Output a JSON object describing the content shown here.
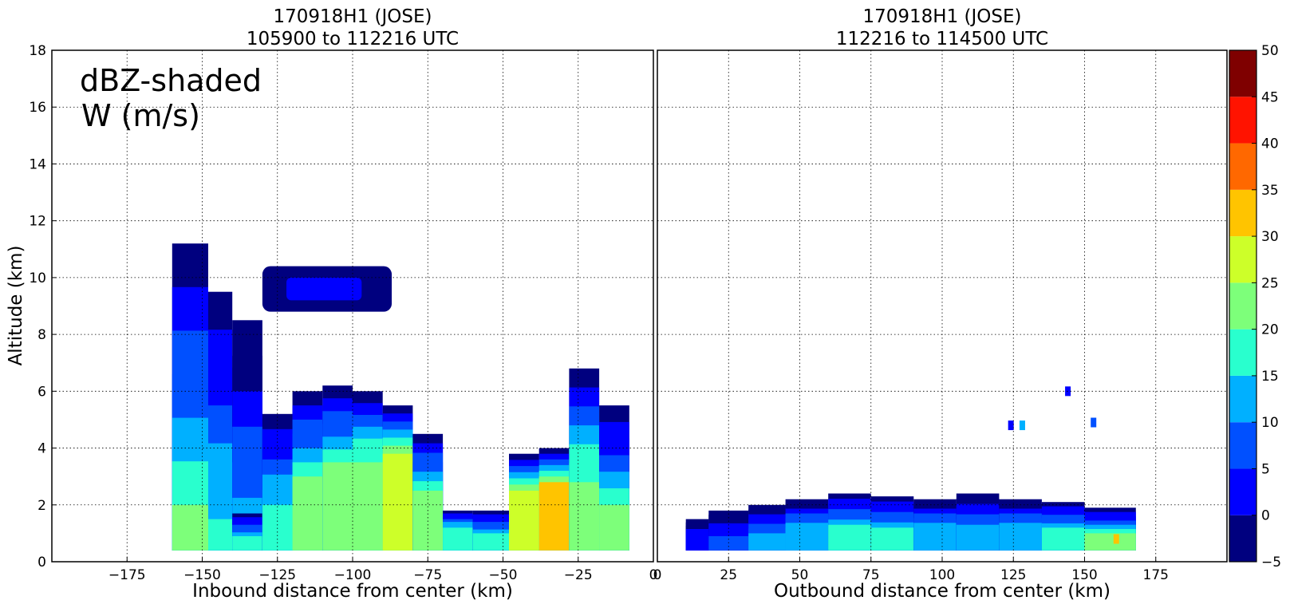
{
  "chart_data": [
    {
      "type": "heatmap",
      "title": "170918H1 (JOSE)",
      "subtitle": "105900 to 112216 UTC",
      "xlabel": "Inbound distance from center (km)",
      "ylabel": "Altitude (km)",
      "xlim": [
        -200,
        0
      ],
      "ylim": [
        0,
        18
      ],
      "xticks": [
        "−175",
        "−150",
        "−125",
        "−100",
        "−75",
        "−50",
        "−25",
        "0"
      ],
      "xtick_values": [
        -175,
        -150,
        -125,
        -100,
        -75,
        -50,
        -25,
        0
      ],
      "yticks": [
        "0",
        "2",
        "4",
        "6",
        "8",
        "10",
        "12",
        "14",
        "16",
        "18"
      ],
      "ytick_values": [
        0,
        2,
        4,
        6,
        8,
        10,
        12,
        14,
        16,
        18
      ],
      "grid": true,
      "annotation": [
        "dBZ-shaded",
        "W (m/s)"
      ],
      "columns": [
        {
          "x0": -160,
          "x1": -148,
          "top": 11.2,
          "core": 2.0,
          "peak": 22
        },
        {
          "x0": -148,
          "x1": -140,
          "top": 9.5,
          "core": 1.5,
          "peak": 18
        },
        {
          "x0": -140,
          "x1": -130,
          "top": 8.5,
          "core": 1.0,
          "peak": 14
        },
        {
          "x0": -140,
          "x1": -130,
          "top": 1.7,
          "core": 0.9,
          "peak": 16
        },
        {
          "x0": -130,
          "x1": -120,
          "top": 5.2,
          "core": 2.0,
          "peak": 18
        },
        {
          "x0": -120,
          "x1": -110,
          "top": 6.0,
          "core": 3.0,
          "peak": 22
        },
        {
          "x0": -110,
          "x1": -100,
          "top": 6.2,
          "core": 3.5,
          "peak": 22
        },
        {
          "x0": -100,
          "x1": -90,
          "top": 6.0,
          "core": 3.5,
          "peak": 24
        },
        {
          "x0": -90,
          "x1": -80,
          "top": 5.5,
          "core": 3.8,
          "peak": 28
        },
        {
          "x0": -80,
          "x1": -70,
          "top": 4.5,
          "core": 2.5,
          "peak": 22
        },
        {
          "x0": -70,
          "x1": -60,
          "top": 1.8,
          "core": 1.2,
          "peak": 18
        },
        {
          "x0": -60,
          "x1": -48,
          "top": 1.8,
          "core": 1.0,
          "peak": 16
        },
        {
          "x0": -48,
          "x1": -38,
          "top": 3.8,
          "core": 2.5,
          "peak": 26
        },
        {
          "x0": -38,
          "x1": -28,
          "top": 4.0,
          "core": 2.8,
          "peak": 30
        },
        {
          "x0": -28,
          "x1": -18,
          "top": 6.8,
          "core": 2.8,
          "peak": 24
        },
        {
          "x0": -18,
          "x1": -8,
          "top": 5.5,
          "core": 2.0,
          "peak": 20
        }
      ],
      "anvil": {
        "x0": -130,
        "x1": -87,
        "bottom": 8.8,
        "top": 10.4,
        "value": 3
      }
    },
    {
      "type": "heatmap",
      "title": "170918H1 (JOSE)",
      "subtitle": "112216 to 114500 UTC",
      "xlabel": "Outbound distance from center (km)",
      "ylabel": "",
      "xlim": [
        0,
        200
      ],
      "ylim": [
        0,
        18
      ],
      "xticks": [
        "0",
        "25",
        "50",
        "75",
        "100",
        "125",
        "150",
        "175"
      ],
      "xtick_values": [
        0,
        25,
        50,
        75,
        100,
        125,
        150,
        175
      ],
      "grid": true,
      "columns": [
        {
          "x0": 10,
          "x1": 18,
          "top": 1.5,
          "core": 0.8,
          "peak": 3
        },
        {
          "x0": 18,
          "x1": 32,
          "top": 1.8,
          "core": 0.9,
          "peak": 5
        },
        {
          "x0": 32,
          "x1": 45,
          "top": 2.0,
          "core": 1.0,
          "peak": 10
        },
        {
          "x0": 45,
          "x1": 60,
          "top": 2.2,
          "core": 1.2,
          "peak": 14
        },
        {
          "x0": 60,
          "x1": 75,
          "top": 2.4,
          "core": 1.3,
          "peak": 16
        },
        {
          "x0": 75,
          "x1": 90,
          "top": 2.3,
          "core": 1.2,
          "peak": 16
        },
        {
          "x0": 90,
          "x1": 105,
          "top": 2.2,
          "core": 1.2,
          "peak": 14
        },
        {
          "x0": 105,
          "x1": 120,
          "top": 2.4,
          "core": 1.3,
          "peak": 12
        },
        {
          "x0": 120,
          "x1": 135,
          "top": 2.2,
          "core": 1.2,
          "peak": 14
        },
        {
          "x0": 135,
          "x1": 150,
          "top": 2.1,
          "core": 1.2,
          "peak": 16
        },
        {
          "x0": 150,
          "x1": 168,
          "top": 1.9,
          "core": 1.0,
          "peak": 20
        }
      ],
      "specks": [
        {
          "x": 124,
          "y": 4.8,
          "value": 2
        },
        {
          "x": 128,
          "y": 4.8,
          "value": 10
        },
        {
          "x": 144,
          "y": 6.0,
          "value": 2
        },
        {
          "x": 153,
          "y": 4.9,
          "value": 8
        },
        {
          "x": 161,
          "y": 0.8,
          "value": 32
        }
      ]
    }
  ],
  "colorbar": {
    "levels": [
      "−5",
      "0",
      "5",
      "10",
      "15",
      "20",
      "25",
      "30",
      "35",
      "40",
      "45",
      "50"
    ],
    "level_values": [
      -5,
      0,
      5,
      10,
      15,
      20,
      25,
      30,
      35,
      40,
      45,
      50
    ],
    "colors": [
      "#00007f",
      "#0000ff",
      "#0050ff",
      "#00b0ff",
      "#29ffce",
      "#7dff7a",
      "#cdff29",
      "#ffc400",
      "#ff6800",
      "#ff1300",
      "#7f0000"
    ]
  }
}
